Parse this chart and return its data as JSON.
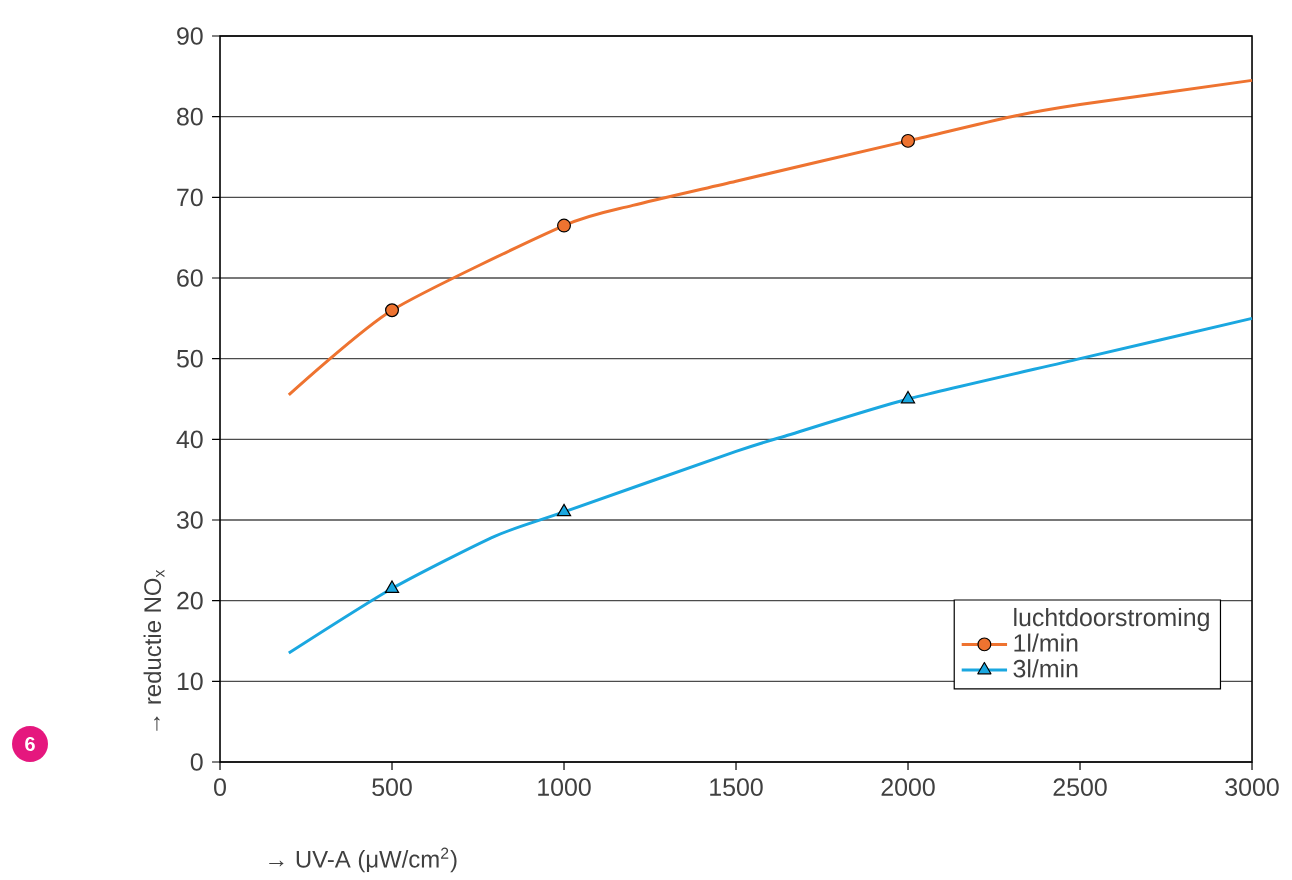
{
  "chart_data": {
    "type": "line",
    "xlabel": "→ UV-A (μW/cm$^{2}$)",
    "ylabel": "→ reductie NO$_{x}$",
    "legend_title": "luchtdoorstroming",
    "annotations": [
      "6"
    ],
    "xlim": [
      0,
      3000
    ],
    "xticks": [
      0,
      500,
      1000,
      1500,
      2000,
      2500,
      3000
    ],
    "ylim": [
      0,
      90
    ],
    "yticks": [
      0,
      10,
      20,
      30,
      40,
      50,
      60,
      70,
      80,
      90
    ],
    "grid": "y",
    "legend": "bottom right",
    "series": [
      {
        "name": "1l/min",
        "marker": "none",
        "color": "#ee7330",
        "x": [
          200,
          500,
          1000,
          1200,
          1500,
          2000,
          2300,
          2500,
          3000
        ],
        "values": [
          45.5,
          56,
          66.5,
          69,
          72,
          77,
          80,
          81.5,
          84.5
        ]
      },
      {
        "type": "scatter",
        "marker": "circle",
        "color": "#ee7330",
        "x": [
          500,
          1000,
          2000
        ],
        "values": [
          56,
          66.5,
          77
        ]
      },
      {
        "name": "3l/min",
        "marker": "none",
        "color": "#1aa7e0",
        "x": [
          200,
          500,
          800,
          1000,
          1500,
          1650,
          2000,
          2500,
          3000
        ],
        "values": [
          13.5,
          21.5,
          28,
          31,
          38.5,
          40.5,
          45,
          50,
          55
        ]
      },
      {
        "type": "scatter",
        "marker": "triangle",
        "color": "#1aa7e0",
        "x": [
          500,
          1000,
          2000
        ],
        "values": [
          21.5,
          31,
          45
        ]
      }
    ]
  }
}
